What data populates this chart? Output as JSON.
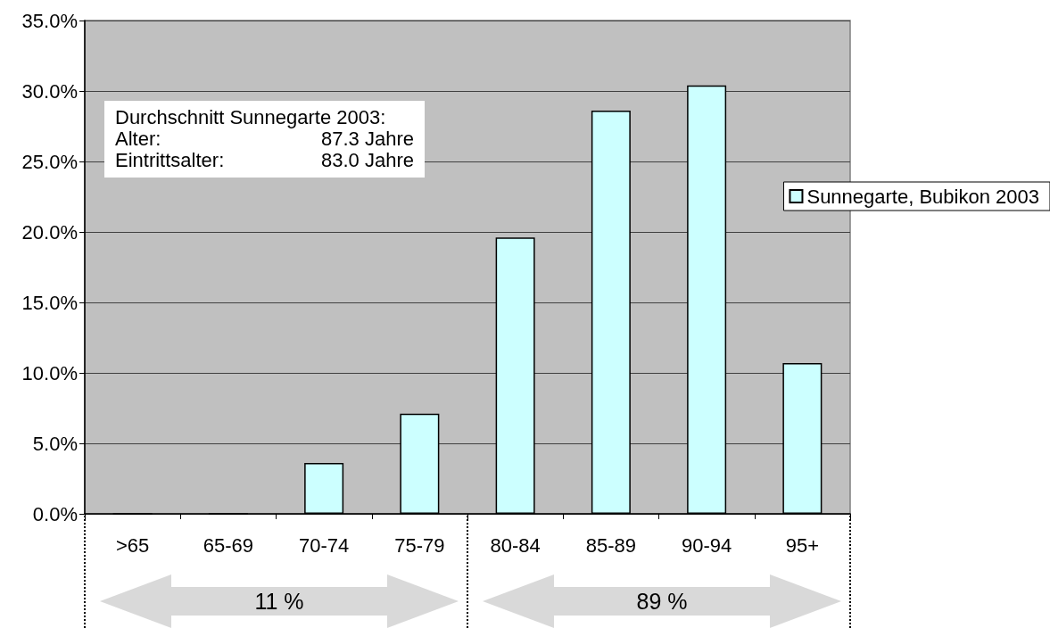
{
  "chart_data": {
    "type": "bar",
    "categories": [
      ">65",
      "65-69",
      "70-74",
      "75-79",
      "80-84",
      "85-89",
      "90-94",
      "95+"
    ],
    "series": [
      {
        "name": "Sunnegarte, Bubikon 2003",
        "color": "#ccffff",
        "values": [
          0,
          0,
          3.6,
          7.1,
          19.6,
          28.6,
          30.4,
          10.7
        ]
      }
    ],
    "ylim": [
      0,
      35
    ],
    "yticks": [
      {
        "value": 0,
        "label": "0.0%"
      },
      {
        "value": 5,
        "label": "5.0%"
      },
      {
        "value": 10,
        "label": "10.0%"
      },
      {
        "value": 15,
        "label": "15.0%"
      },
      {
        "value": 20,
        "label": "20.0%"
      },
      {
        "value": 25,
        "label": "25.0%"
      },
      {
        "value": 30,
        "label": "30.0%"
      },
      {
        "value": 35,
        "label": "35.0%"
      }
    ],
    "grid": "y",
    "legend": "right",
    "annotations": [
      "Durchschnitt Sunnegarte 2003:",
      "Alter:",
      "87.3 Jahre",
      "Eintrittsalter:",
      "83.0 Jahre",
      "11 %",
      "89 %"
    ]
  }
}
